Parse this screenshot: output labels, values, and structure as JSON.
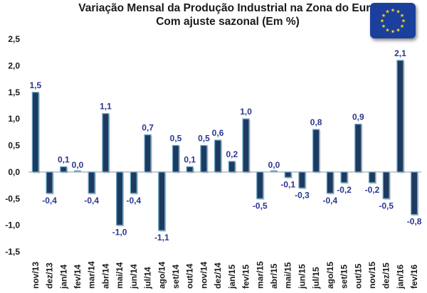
{
  "chart_data": {
    "type": "bar",
    "title": "Variação Mensal da Produção Industrial na Zona do Euro",
    "subtitle": "Com ajuste sazonal (Em %)",
    "categories": [
      "nov/13",
      "dez/13",
      "jan/14",
      "fev/14",
      "mar/14",
      "abr/14",
      "mai/14",
      "jun/14",
      "jul/14",
      "ago/14",
      "set/14",
      "out/14",
      "nov/14",
      "dez/14",
      "jan/15",
      "fev/15",
      "mar/15",
      "abr/15",
      "mai/15",
      "jun/15",
      "jul/15",
      "ago/15",
      "set/15",
      "out/15",
      "nov/15",
      "dez/15",
      "jan/16",
      "fev/16"
    ],
    "values": [
      1.5,
      -0.4,
      0.1,
      0.0,
      -0.4,
      1.1,
      -1.0,
      -0.4,
      0.7,
      -1.1,
      0.5,
      0.1,
      0.5,
      0.6,
      0.2,
      1.0,
      -0.5,
      0.0,
      -0.1,
      -0.3,
      0.8,
      -0.4,
      -0.2,
      0.9,
      -0.2,
      -0.5,
      2.1,
      -0.8
    ],
    "data_labels": [
      "1,5",
      "-0,4",
      "0,1",
      "0,0",
      "-0,4",
      "1,1",
      "-1,0",
      "-0,4",
      "0,7",
      "-1,1",
      "0,5",
      "0,1",
      "0,5",
      "0,6",
      "0,2",
      "1,0",
      "-0,5",
      "0,0",
      "-0,1",
      "-0,3",
      "0,8",
      "-0,4",
      "-0,2",
      "0,9",
      "-0,2",
      "-0,5",
      "2,1",
      "-0,8"
    ],
    "y_ticks": [
      2.5,
      2.0,
      1.5,
      1.0,
      0.5,
      0.0,
      -0.5,
      -1.0,
      -1.5
    ],
    "y_tick_labels": [
      "2,5",
      "2,0",
      "1,5",
      "1,0",
      "0,5",
      "0,0",
      "-0,5",
      "-1,0",
      "-1,5"
    ],
    "ylim": [
      -1.5,
      2.5
    ],
    "xlabel": "",
    "ylabel": "",
    "grid": false,
    "legend": "none",
    "colors": {
      "bar_fill": "#1f3a5f",
      "bar_edge": "#6fa9c9",
      "zero_bar": "#7fa88a",
      "label": "#2b3590",
      "axis": "#999999"
    }
  },
  "flag_icon": "eu-flag-icon"
}
